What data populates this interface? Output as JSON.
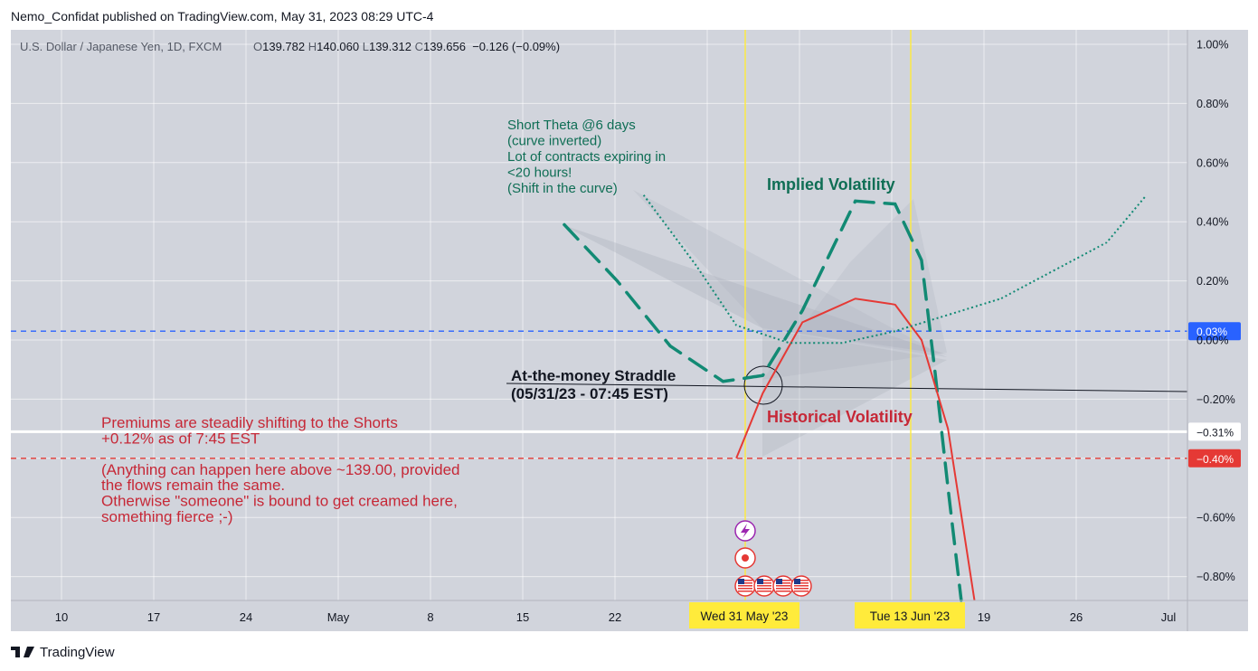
{
  "header": {
    "publish_line": "Nemo_Confidat published on TradingView.com, May 31, 2023 08:29 UTC-4"
  },
  "footer": {
    "brand": "TradingView"
  },
  "colors": {
    "bg": "#d1d4dc",
    "grid": "#ffffff",
    "text": "#131722",
    "blue": "#2962ff",
    "red": "#e53935",
    "teal": "#128a74",
    "annot_green": "#0f6e55",
    "annot_red": "#c62837",
    "gold": "#ffeb3b"
  },
  "symbol_line": {
    "name": "U.S. Dollar / Japanese Yen, 1D, FXCM",
    "o_label": "O",
    "o": "139.782",
    "h_label": "H",
    "h": "140.060",
    "l_label": "L",
    "l": "139.312",
    "c_label": "C",
    "c": "139.656",
    "change": "−0.126 (−0.09%)"
  },
  "chart_data": {
    "type": "line",
    "y_axis": {
      "unit": "percent",
      "range": [
        -0.88,
        1.02
      ],
      "ticks": [
        "1.00%",
        "0.80%",
        "0.60%",
        "0.40%",
        "0.20%",
        "0.00%",
        "−0.20%",
        "−0.60%",
        "−0.80%"
      ],
      "tick_values": [
        1.0,
        0.8,
        0.6,
        0.4,
        0.2,
        0.0,
        -0.2,
        -0.6,
        -0.8
      ]
    },
    "x_axis": {
      "ticks": [
        "10",
        "17",
        "24",
        "May",
        "8",
        "15",
        "22",
        "19",
        "26",
        "Jul"
      ],
      "date_labels": [
        "Wed 31 May '23",
        "Tue 13 Jun '23"
      ]
    },
    "grid": true,
    "price_levels": [
      {
        "label": "0.03%",
        "value": 0.03,
        "style": "dashed",
        "color": "#2962ff"
      },
      {
        "label": "−0.31%",
        "value": -0.31,
        "style": "solid",
        "color": "#ffffff"
      },
      {
        "label": "−0.40%",
        "value": -0.4,
        "style": "dashed",
        "color": "#e53935"
      }
    ],
    "vertical_markers": [
      "Wed 31 May '23",
      "Tue 13 Jun '23"
    ],
    "series": [
      {
        "name": "Implied Volatility",
        "style": "dashed",
        "color": "#128a74",
        "x": [
          "2023-05-18",
          "2023-05-22",
          "2023-05-26",
          "2023-05-30",
          "2023-06-02",
          "2023-06-05",
          "2023-06-09",
          "2023-06-12",
          "2023-06-14",
          "2023-06-15",
          "2023-06-16",
          "2023-06-17"
        ],
        "values": [
          0.39,
          0.2,
          -0.02,
          -0.14,
          -0.12,
          0.1,
          0.47,
          0.46,
          0.27,
          -0.1,
          -0.5,
          -0.88
        ]
      },
      {
        "name": "Historical Volatility",
        "style": "solid",
        "color": "#e53935",
        "x": [
          "2023-05-31",
          "2023-06-02",
          "2023-06-05",
          "2023-06-09",
          "2023-06-12",
          "2023-06-14",
          "2023-06-16",
          "2023-06-18"
        ],
        "values": [
          -0.4,
          -0.18,
          0.06,
          0.14,
          0.12,
          0.0,
          -0.3,
          -0.88
        ]
      },
      {
        "name": "Short Theta @6 days",
        "style": "dotted",
        "color": "#128a74",
        "x": [
          "2023-05-24",
          "2023-05-28",
          "2023-05-31",
          "2023-06-04",
          "2023-06-08",
          "2023-06-12",
          "2023-06-20",
          "2023-06-28",
          "2023-07-01"
        ],
        "values": [
          0.49,
          0.25,
          0.05,
          -0.01,
          -0.01,
          0.03,
          0.14,
          0.33,
          0.49
        ]
      }
    ],
    "annotations": {
      "theta": [
        "Short Theta @6 days",
        "(curve inverted)",
        "Lot of contracts expiring in",
        "<20  hours!",
        "(Shift in the curve)"
      ],
      "implied": "Implied Volatility",
      "historical": "Historical Volatility",
      "straddle": [
        "At-the-money Straddle",
        "(05/31/23 - 07:45 EST)"
      ],
      "premiums": [
        "Premiums are steadily shifting to the Shorts",
        "+0.12% as of 7:45 EST",
        "",
        "(Anything can happen here above ~139.00, provided",
        "the flows remain the same.",
        "Otherwise \"someone\" is bound to get creamed here,",
        "something fierce ;-)"
      ]
    }
  }
}
